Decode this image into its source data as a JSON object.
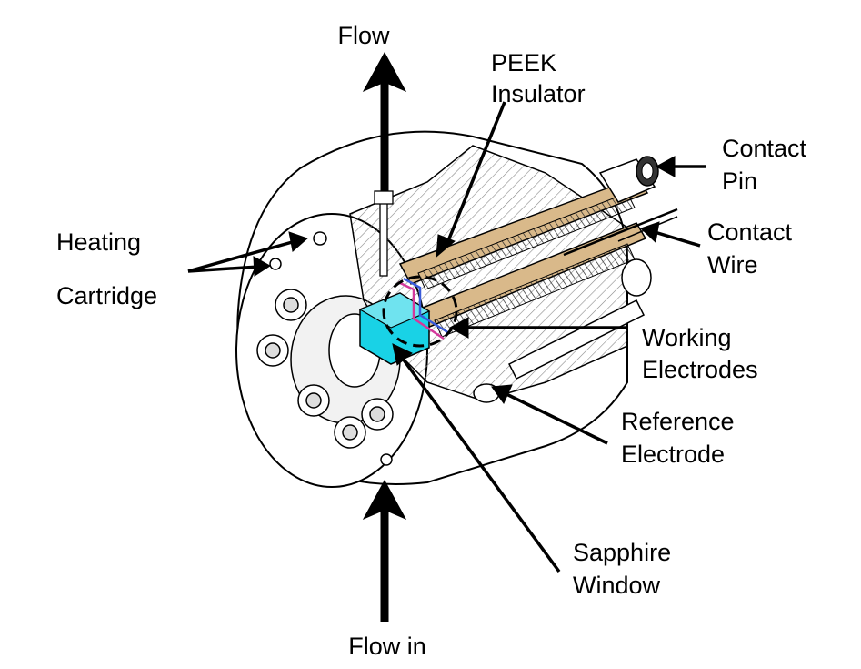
{
  "labels": {
    "flow_out": "Flow",
    "flow_in": "Flow in",
    "peek_insulator": [
      "PEEK",
      "Insulator"
    ],
    "contact_pin": [
      "Contact",
      "Pin"
    ],
    "contact_wire": [
      "Contact",
      "Wire"
    ],
    "heating_cartridge": [
      "Heating",
      "Cartridge"
    ],
    "working_electrodes": [
      "Working",
      "Electrodes"
    ],
    "reference_electrode": [
      "Reference",
      "Electrode"
    ],
    "sapphire_window": [
      "Sapphire",
      "Window"
    ]
  },
  "colors": {
    "line": "#000000",
    "peek": "#d9b98a",
    "sapphire": "#19d2e6",
    "hatch": "#777777",
    "accent_magenta": "#d4399b",
    "accent_blue": "#3a5bd9"
  }
}
